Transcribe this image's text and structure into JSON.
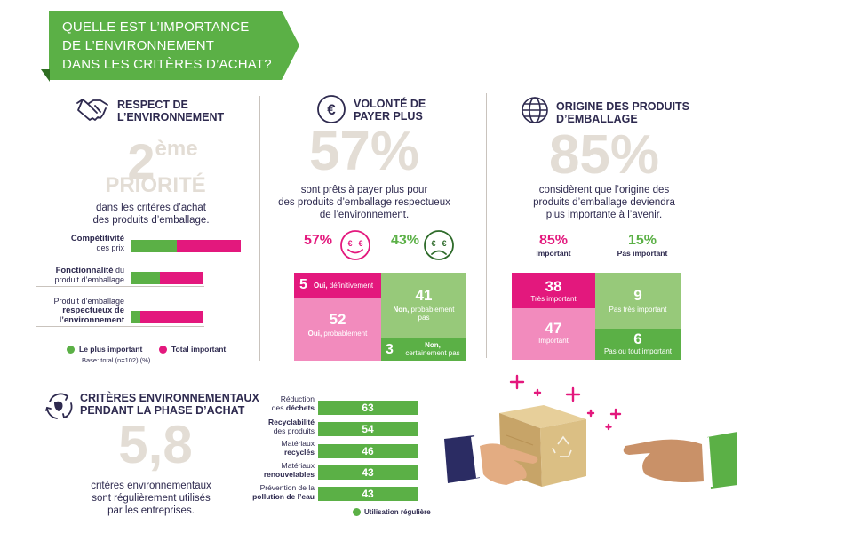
{
  "banner": {
    "line1": "QUELLE EST L’IMPORTANCE",
    "line2": "DE L’ENVIRONNEMENT",
    "line3": "DANS LES CRITÈRES D’ACHAT?"
  },
  "respect": {
    "title1": "RESPECT DE",
    "title2": "L’ENVIRONNEMENT",
    "big_num": "2",
    "big_sup": "ème",
    "big_word": "PRIORITÉ",
    "desc1": "dans les critères d’achat",
    "desc2": "des produits d’emballage.",
    "bars": [
      {
        "bold": "Compétitivité",
        "rest": "des prix",
        "plus_important": 0.35,
        "total_important": 0.85
      },
      {
        "bold": "Fonctionnalité",
        "rest_inline": " du",
        "rest": "produit d’emballage",
        "plus_important": 0.22,
        "total_important": 0.56
      },
      {
        "pre1": "Produit d’emballage",
        "bold": "respectueux de",
        "bold2": "l’environnement",
        "plus_important": 0.07,
        "total_important": 0.56
      }
    ],
    "legend_green": "Le plus important",
    "legend_pink": "Total important",
    "base": "Base: total (n=102) (%)",
    "colors": {
      "green": "#5bb046",
      "pink": "#e3187d"
    }
  },
  "payer": {
    "title1": "VOLONTÉ DE",
    "title2": "PAYER PLUS",
    "big": "57%",
    "desc1": "sont prêts à payer plus pour",
    "desc2": "des produits d’emballage respectueux",
    "desc3": "de l’environnement.",
    "yes_pct": "57%",
    "no_pct": "43%",
    "tiles": {
      "t5_num": "5",
      "t5_bold": "Oui,",
      "t5_text": " définitivement",
      "t52_num": "52",
      "t52_bold": "Oui,",
      "t52_text": " probablement",
      "t41_num": "41",
      "t41_bold": "Non,",
      "t41_text1": " probablement",
      "t41_text2": "pas",
      "t3_num": "3",
      "t3_bold": "Non,",
      "t3_text": "certainement pas"
    }
  },
  "origine": {
    "title1": "ORIGINE DES PRODUITS",
    "title2": "D’EMBALLAGE",
    "big": "85%",
    "desc1": "considèrent que l’origine des",
    "desc2": "produits d’emballage deviendra",
    "desc3": "plus importante à l’avenir.",
    "imp_pct": "85%",
    "imp_label": "Important",
    "pimp_pct": "15%",
    "pimp_label": "Pas important",
    "tiles": {
      "t38_num": "38",
      "t38_text": "Très important",
      "t47_num": "47",
      "t47_text": "Important",
      "t9_num": "9",
      "t9_text": "Pas très important",
      "t6_num": "6",
      "t6_text": "Pas ou tout important"
    }
  },
  "criteres": {
    "title1": "CRITÈRES ENVIRONNEMENTAUX",
    "title2": "PENDANT LA PHASE D’ACHAT",
    "big": "5,8",
    "desc1": "critères environnementaux",
    "desc2": "sont régulièrement utilisés",
    "desc3": "par les entreprises.",
    "rows": [
      {
        "l1": "Réduction",
        "l2a": "des ",
        "l2b": "déchets",
        "value": "63"
      },
      {
        "l1b": "Recyclabilité",
        "l2": "des produits",
        "value": "54"
      },
      {
        "l1": "Matériaux",
        "l2b": "recyclés",
        "value": "46"
      },
      {
        "l1": "Matériaux",
        "l2b": "renouvelables",
        "value": "43"
      },
      {
        "l1": "Prévention de la",
        "l2b": "pollution de l’eau",
        "value": "43"
      }
    ],
    "legend": "Utilisation régulière"
  }
}
